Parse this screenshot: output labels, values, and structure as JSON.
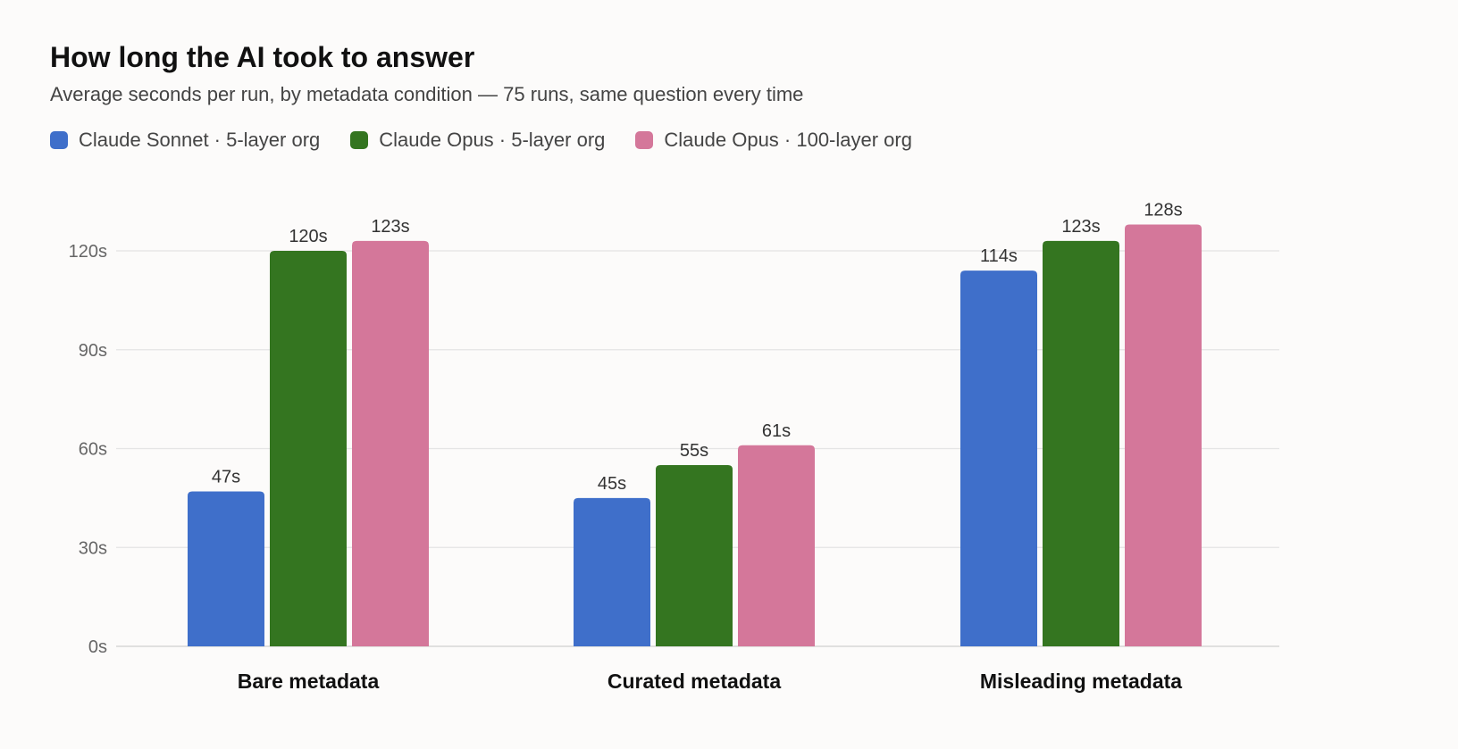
{
  "chart_data": {
    "type": "bar",
    "title": "How long the AI took to answer",
    "subtitle": "Average seconds per run, by metadata condition — 75 runs, same question every time",
    "categories": [
      "Bare metadata",
      "Curated metadata",
      "Misleading metadata"
    ],
    "series": [
      {
        "name": "Claude Sonnet · 5-layer org",
        "color": "#3f6fca",
        "values": [
          47,
          45,
          114
        ],
        "labels": [
          "47s",
          "45s",
          "114s"
        ]
      },
      {
        "name": "Claude Opus · 5-layer org",
        "color": "#347520",
        "values": [
          120,
          55,
          123
        ],
        "labels": [
          "120s",
          "55s",
          "123s"
        ]
      },
      {
        "name": "Claude Opus · 100-layer org",
        "color": "#d4779a",
        "values": [
          123,
          61,
          128
        ],
        "labels": [
          "123s",
          "61s",
          "128s"
        ]
      }
    ],
    "y_ticks": [
      0,
      30,
      60,
      90,
      120
    ],
    "y_tick_labels": [
      "0s",
      "30s",
      "60s",
      "90s",
      "120s"
    ],
    "ylim": [
      0,
      130
    ],
    "grid": true,
    "legend_position": "top-left"
  }
}
